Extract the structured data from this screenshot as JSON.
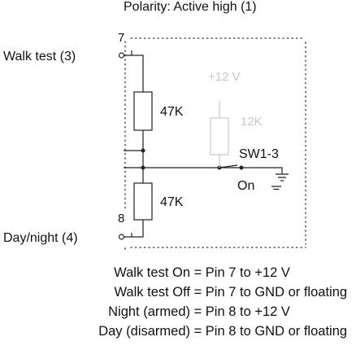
{
  "header": {
    "polarity": "Polarity: Active high (1)"
  },
  "terminals": {
    "walk_test_label": "Walk test (3)",
    "day_night_label": "Day/night (4)",
    "pin_top": "7",
    "pin_bottom": "8"
  },
  "components": {
    "r_top": "47K",
    "r_bottom": "47K",
    "r_pullup": "12K",
    "supply": "+12 V",
    "switch": "SW1-3",
    "switch_state": "On"
  },
  "notes": {
    "line1": "Walk test On = Pin 7 to +12 V",
    "line2": "Walk test Off = Pin 7 to GND or floating",
    "line3": "Night (armed) = Pin 8 to +12 V",
    "line4": "Day (disarmed) = Pin 8 to GND or floating"
  },
  "colors": {
    "ink": "#111111",
    "inactive": "#c8c8c8"
  }
}
